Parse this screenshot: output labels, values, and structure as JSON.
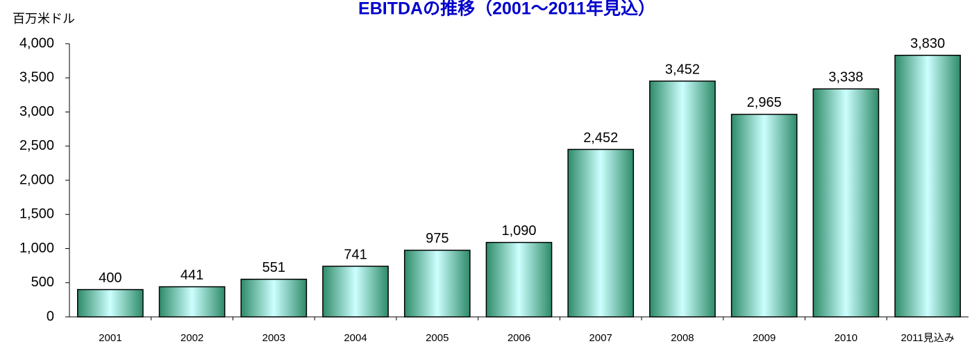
{
  "chart_data": {
    "type": "bar",
    "title": "EBITDAの推移（2001〜2011年見込）",
    "y_axis_label": "百万米ドル",
    "categories": [
      "2001",
      "2002",
      "2003",
      "2004",
      "2005",
      "2006",
      "2007",
      "2008",
      "2009",
      "2010",
      "2011見込み"
    ],
    "values": [
      400,
      441,
      551,
      741,
      975,
      1090,
      2452,
      3452,
      2965,
      3338,
      3830
    ],
    "value_labels": [
      "400",
      "441",
      "551",
      "741",
      "975",
      "1,090",
      "2,452",
      "3,452",
      "2,965",
      "3,338",
      "3,830"
    ],
    "color": "#2e8b68",
    "ylim": [
      0,
      4000
    ],
    "yticks": [
      0,
      500,
      {
        "value": 1000,
        "label": "1,000"
      },
      {
        "value": 1500,
        "label": "1,500"
      },
      {
        "value": 2000,
        "label": "2,000"
      },
      {
        "value": 2500,
        "label": "2,500"
      },
      {
        "value": 3000,
        "label": "3,000"
      },
      {
        "value": 3500,
        "label": "3,500"
      },
      {
        "value": 4000,
        "label": "4,000"
      }
    ],
    "grid": false
  }
}
